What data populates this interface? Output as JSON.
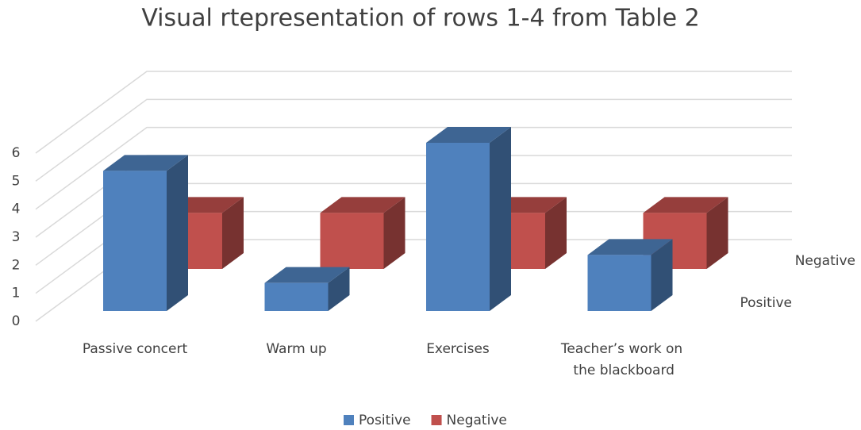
{
  "chart_data": {
    "type": "bar3d",
    "title": "Visual rtepresentation of rows 1-4 from Table 2",
    "categories": [
      "Passive concert",
      "Warm up",
      "Exercises",
      "Teacher’s work on the blackboard"
    ],
    "series": [
      {
        "name": "Positive",
        "color": "#4f81bd",
        "values": [
          5,
          1,
          6,
          2
        ]
      },
      {
        "name": "Negative",
        "color": "#c0504d",
        "values": [
          2,
          2,
          2,
          2
        ]
      }
    ],
    "ylim": [
      0,
      6
    ],
    "yticks": [
      0,
      1,
      2,
      3,
      4,
      5,
      6
    ],
    "grid": true,
    "legend": "bottom"
  }
}
